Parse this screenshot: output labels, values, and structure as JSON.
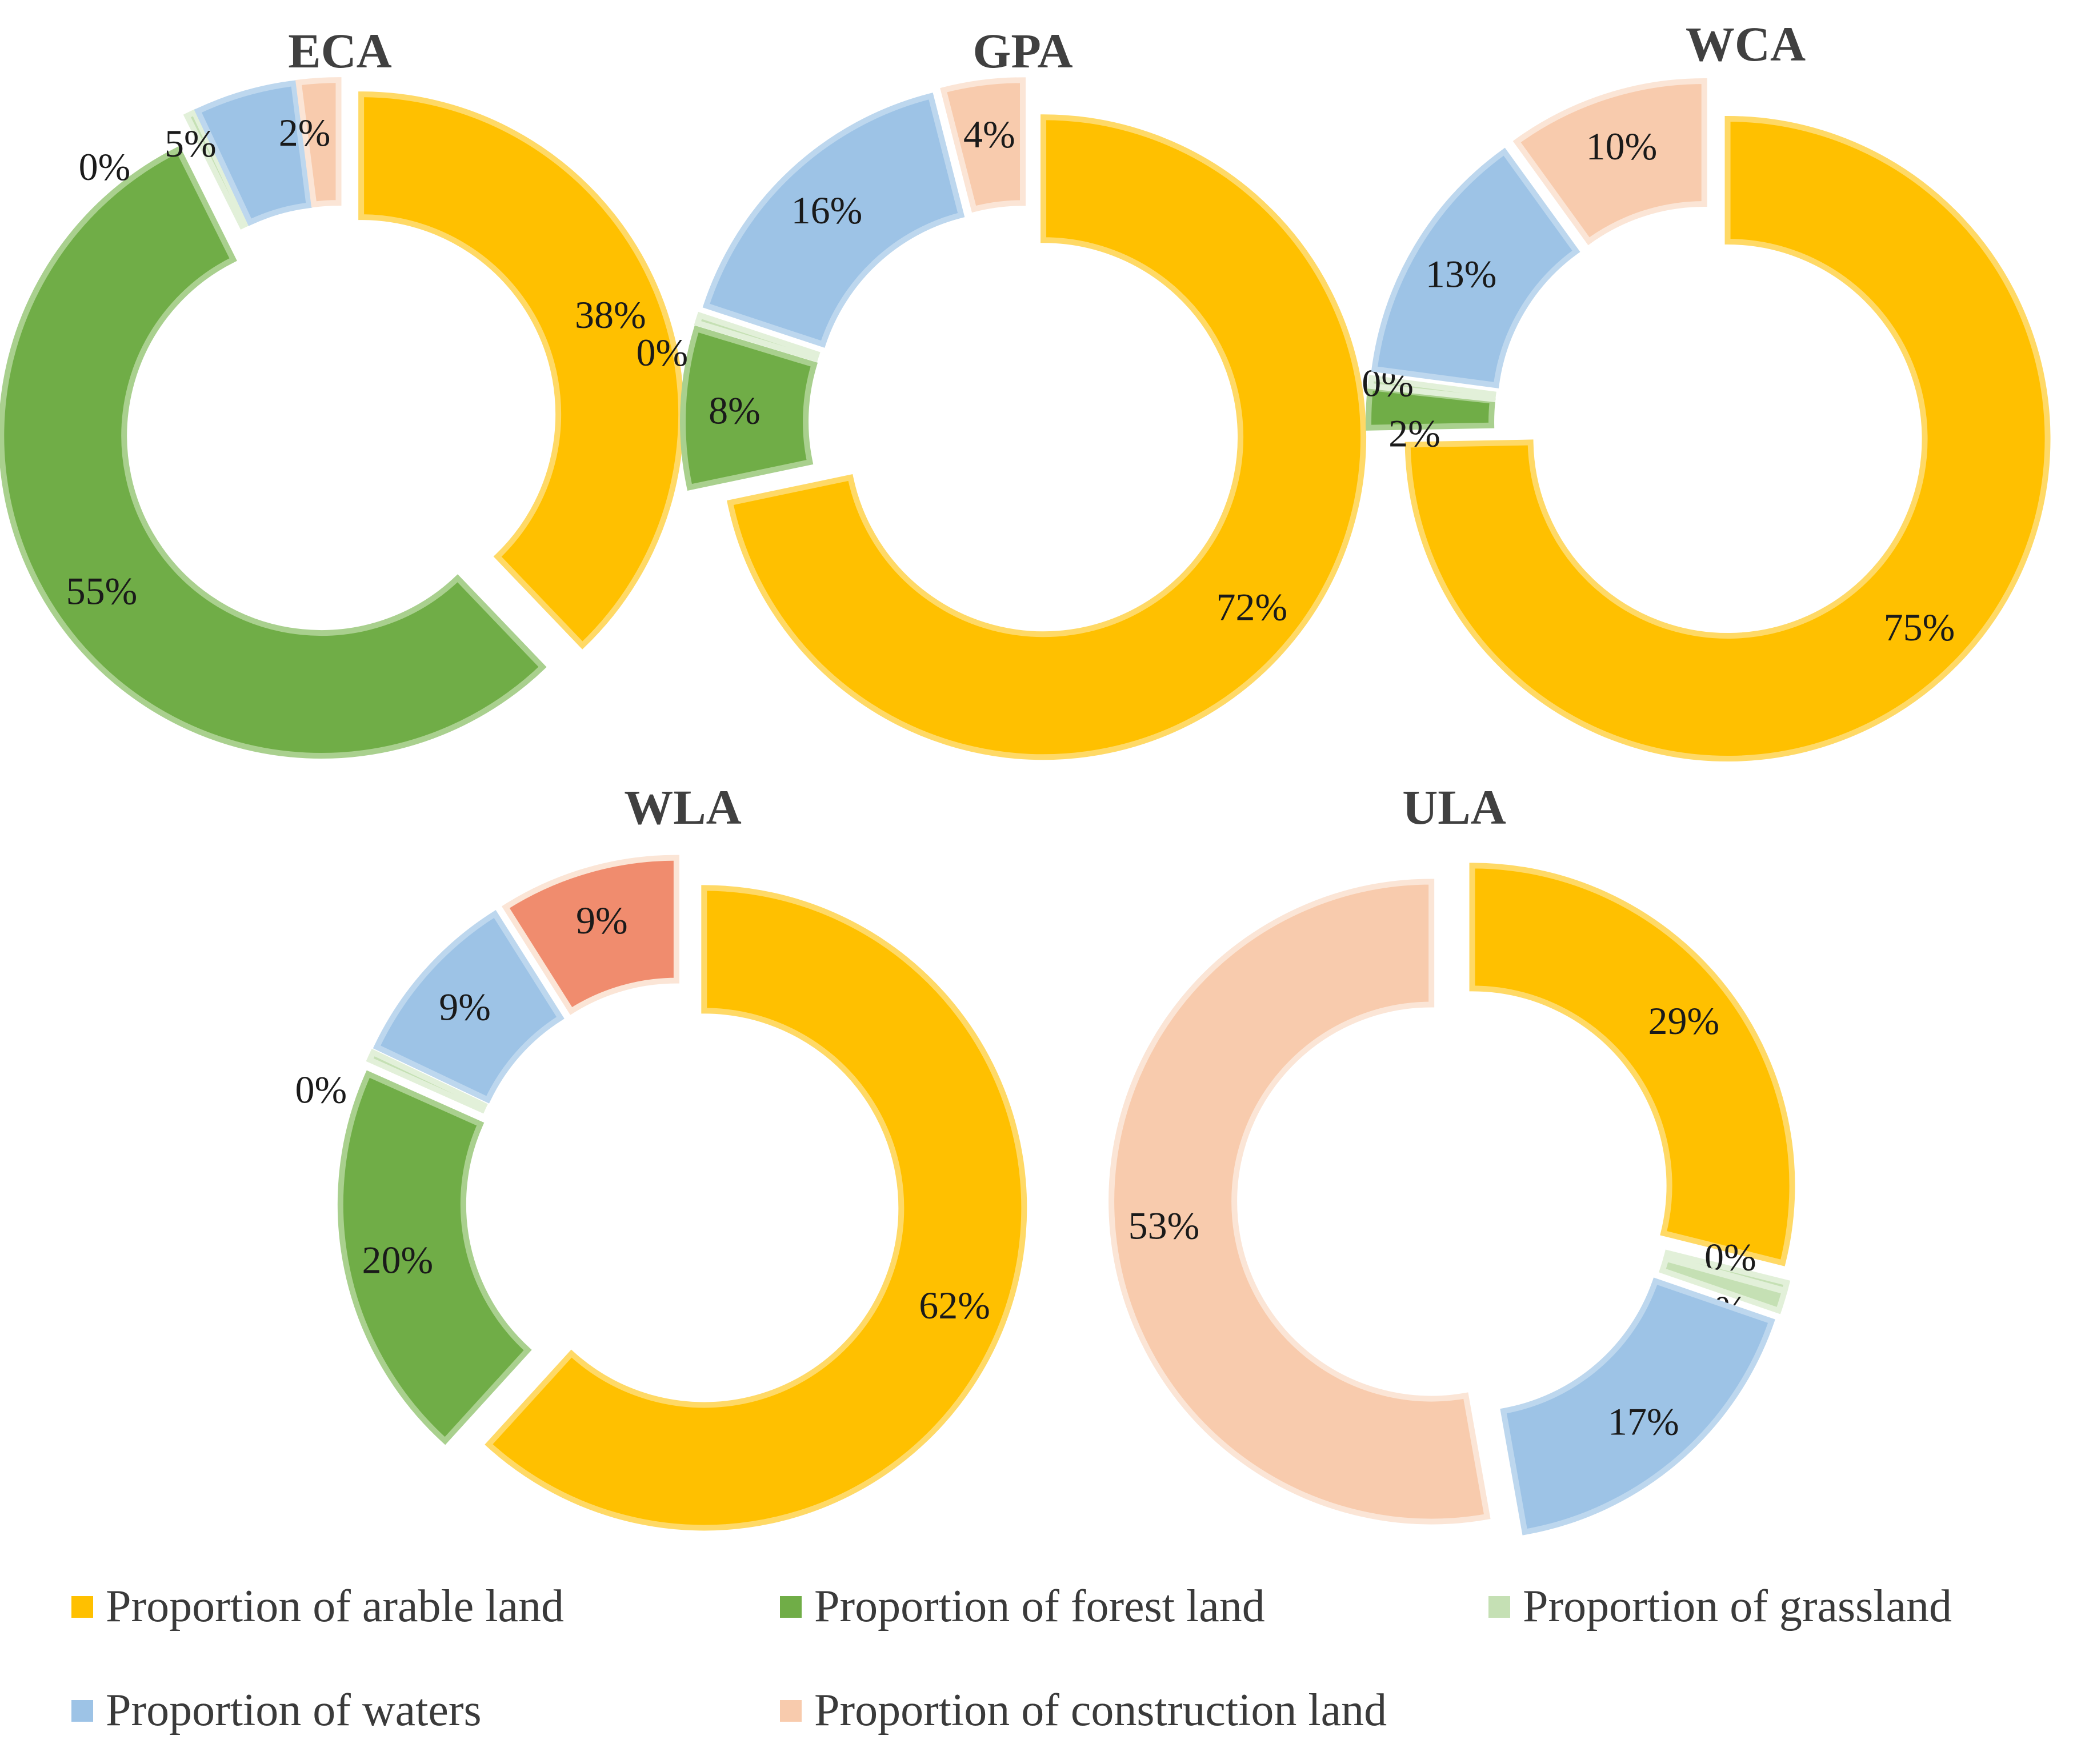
{
  "legend": [
    {
      "key": "arable",
      "label": "Proportion of arable land",
      "color": "#FFC000",
      "edge": "#FFD966"
    },
    {
      "key": "forest",
      "label": "Proportion of forest land",
      "color": "#70AD47",
      "edge": "#A9D08E"
    },
    {
      "key": "grassland",
      "label": "Proportion of grassland",
      "color": "#C5E0B4",
      "edge": "#E2F0D9"
    },
    {
      "key": "waters",
      "label": "Proportion of waters",
      "color": "#9DC3E6",
      "edge": "#BDD7EE"
    },
    {
      "key": "construction",
      "label": "Proportion of construction land",
      "color": "#F8CBAD",
      "edge": "#FBE5D6"
    }
  ],
  "chart_data": [
    {
      "type": "pie",
      "subtype": "exploded-doughnut",
      "title": "ECA",
      "categories": [
        "arable",
        "forest",
        "grassland",
        "waters",
        "construction"
      ],
      "values": [
        38,
        55,
        0.4,
        5,
        2
      ],
      "labels": [
        "38%",
        "55%",
        "0%",
        "5%",
        "2%"
      ]
    },
    {
      "type": "pie",
      "subtype": "exploded-doughnut",
      "title": "GPA",
      "categories": [
        "arable",
        "forest",
        "grassland",
        "waters",
        "construction"
      ],
      "values": [
        72,
        8,
        0.4,
        16,
        4
      ],
      "labels": [
        "72%",
        "8%",
        "0%",
        "16%",
        "4%"
      ]
    },
    {
      "type": "pie",
      "subtype": "exploded-doughnut",
      "title": "WCA",
      "categories": [
        "arable",
        "forest",
        "grassland",
        "waters",
        "construction"
      ],
      "values": [
        75,
        2,
        0.4,
        13,
        10
      ],
      "labels": [
        "75%",
        "2%",
        "0%",
        "13%",
        "10%"
      ]
    },
    {
      "type": "pie",
      "subtype": "exploded-doughnut",
      "title": "WLA",
      "categories": [
        "arable",
        "forest",
        "grassland",
        "waters",
        "construction"
      ],
      "values": [
        62,
        20,
        0.4,
        9,
        9
      ],
      "labels": [
        "62%",
        "20%",
        "0%",
        "9%",
        "9%"
      ],
      "slice_color_override": {
        "construction": "#F08C6E"
      }
    },
    {
      "type": "pie",
      "subtype": "exploded-doughnut",
      "title": "ULA",
      "categories": [
        "arable",
        "grassland_zero",
        "grassland",
        "waters",
        "construction"
      ],
      "values": [
        29,
        0.4,
        1,
        17,
        53
      ],
      "labels": [
        "29%",
        "0%",
        "1%",
        "17%",
        "53%"
      ]
    }
  ]
}
